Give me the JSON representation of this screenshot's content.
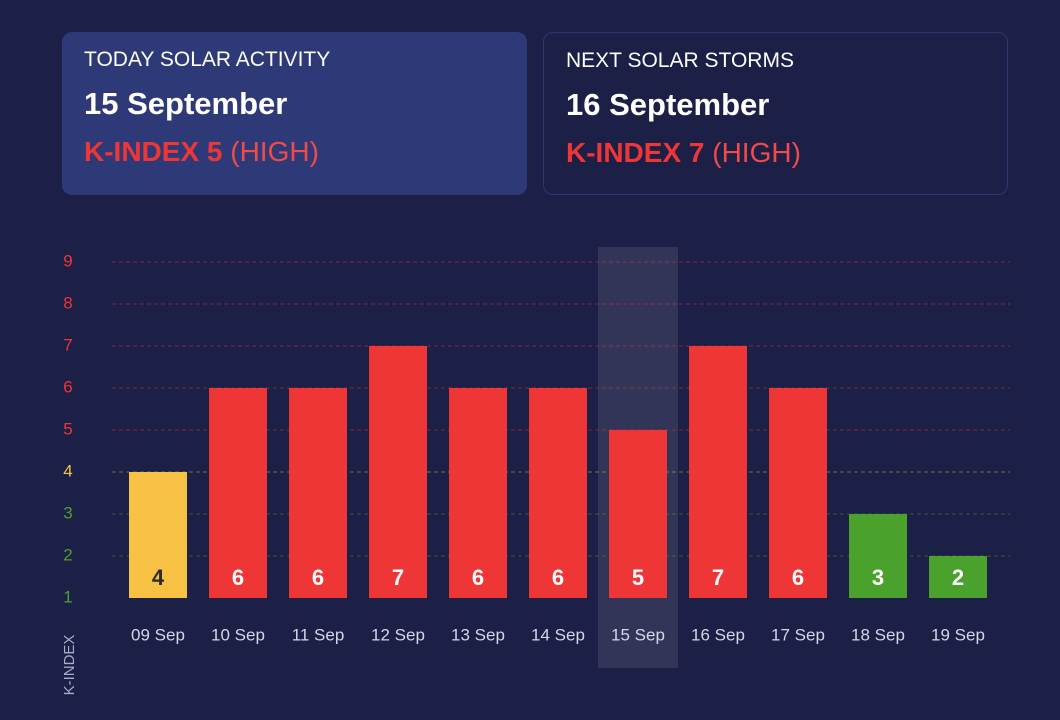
{
  "cards": [
    {
      "title": "TODAY SOLAR ACTIVITY",
      "date": "15 September",
      "k_index": "K-INDEX 5",
      "level": "(HIGH)"
    },
    {
      "title": "NEXT SOLAR STORMS",
      "date": "16 September",
      "k_index": "K-INDEX 7",
      "level": "(HIGH)"
    }
  ],
  "chart_data": {
    "type": "bar",
    "y_label": "K-INDEX",
    "categories": [
      "09 Sep",
      "10 Sep",
      "11 Sep",
      "12 Sep",
      "13 Sep",
      "14 Sep",
      "15 Sep",
      "16 Sep",
      "17 Sep",
      "18 Sep",
      "19 Sep"
    ],
    "values": [
      4,
      6,
      6,
      7,
      6,
      6,
      5,
      7,
      6,
      3,
      2
    ],
    "colors": [
      "#f7c244",
      "#ee3636",
      "#ee3636",
      "#ee3636",
      "#ee3636",
      "#ee3636",
      "#ee3636",
      "#ee3636",
      "#ee3636",
      "#4aa22d",
      "#4aa22d"
    ],
    "highlight_category": "15 Sep",
    "ylim": [
      1,
      9
    ],
    "yticks": [
      1,
      2,
      3,
      4,
      5,
      6,
      7,
      8,
      9
    ],
    "ytick_colors": [
      "#4aa22d",
      "#4aa22d",
      "#4aa22d",
      "#f7c244",
      "#ee3636",
      "#ee3636",
      "#ee3636",
      "#ee3636",
      "#ee3636"
    ],
    "grid": true
  }
}
